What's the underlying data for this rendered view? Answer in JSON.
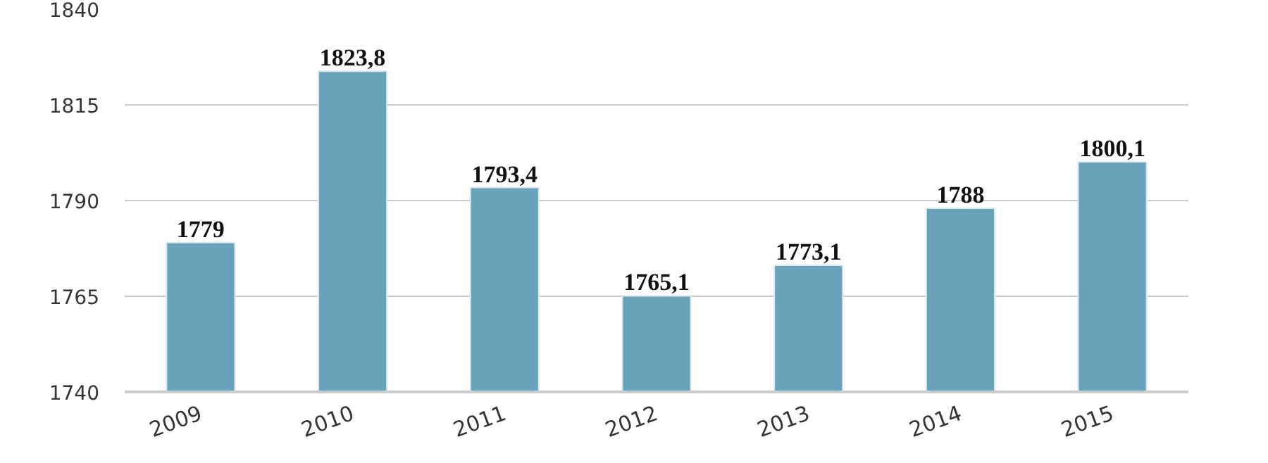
{
  "chart_data": {
    "type": "bar",
    "categories": [
      "2009",
      "2010",
      "2011",
      "2012",
      "2013",
      "2014",
      "2015"
    ],
    "values": [
      1779,
      1823.8,
      1793.4,
      1765.1,
      1773.1,
      1788,
      1800.1
    ],
    "value_labels": [
      "1779",
      "1823,8",
      "1793,4",
      "1765,1",
      "1773,1",
      "1788",
      "1800,1"
    ],
    "color": "#6aa1bb",
    "ylim": [
      1740,
      1840
    ],
    "yticks": [
      1740,
      1765,
      1790,
      1815,
      1840
    ],
    "grid": "y"
  }
}
